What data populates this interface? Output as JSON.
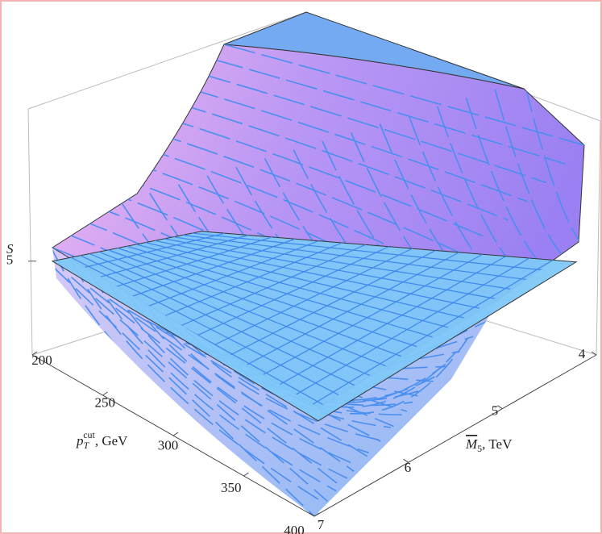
{
  "chart_data": {
    "type": "surface3d",
    "z_label": "S",
    "x_label": {
      "base": "p",
      "sub": "T",
      "sup": "cut",
      "unit": ", GeV"
    },
    "y_label": {
      "base": "M",
      "sub": "5",
      "unit": ", TeV"
    },
    "xlim": [
      200,
      400
    ],
    "xticks": [
      200,
      250,
      300,
      350,
      400
    ],
    "ylim": [
      4,
      7
    ],
    "yticks": [
      4,
      5,
      6,
      7
    ],
    "zlim": [
      3.5,
      7.5
    ],
    "zticks": [
      5
    ],
    "plane_value": 5,
    "surface_color": "#b48cf0",
    "plane_color": "#7fc8f8"
  }
}
